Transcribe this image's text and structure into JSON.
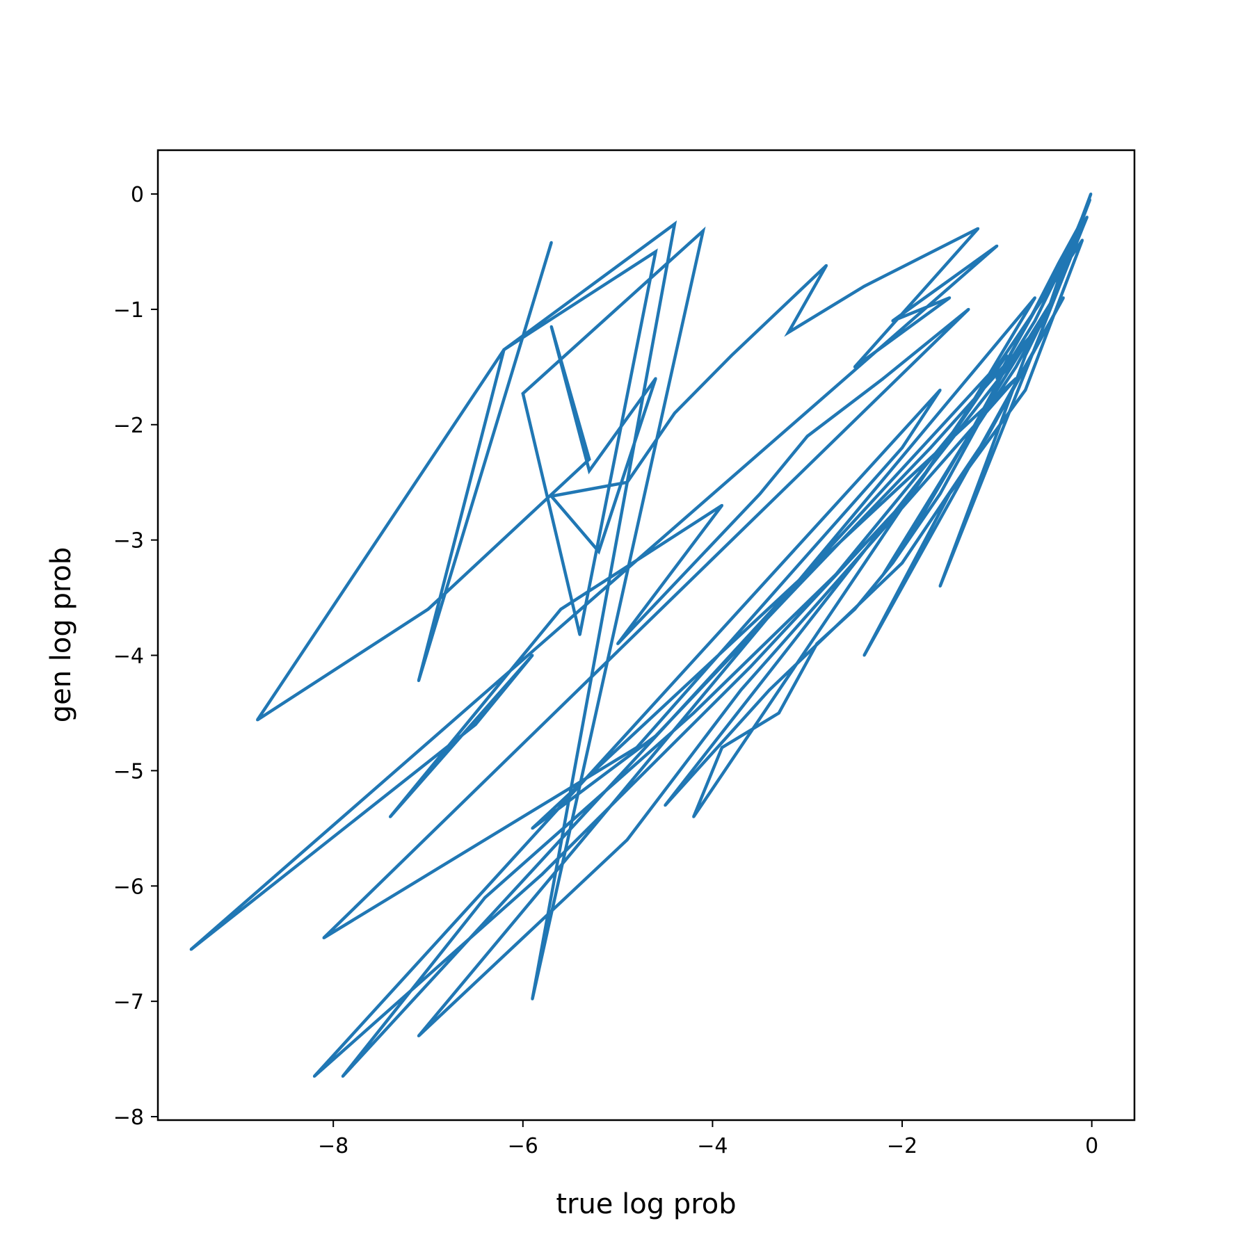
{
  "chart_data": {
    "type": "line",
    "title": "",
    "xlabel": "true log prob",
    "ylabel": "gen log prob",
    "xlim": [
      -9.85,
      0.45
    ],
    "ylim": [
      -8.03,
      0.38
    ],
    "x_ticks": [
      -8,
      -6,
      -4,
      -2,
      0
    ],
    "y_ticks": [
      0,
      -1,
      -2,
      -3,
      -4,
      -5,
      -6,
      -7,
      -8
    ],
    "x_tick_labels": [
      "−8",
      "−6",
      "−4",
      "−2",
      "0"
    ],
    "y_tick_labels": [
      "0",
      "−1",
      "−2",
      "−3",
      "−4",
      "−5",
      "−6",
      "−7",
      "−8"
    ],
    "grid": false,
    "legend": "none",
    "color": "#2077b4",
    "series": [
      {
        "name": "",
        "x": [
          -5.7,
          -7.1,
          -6.2,
          -4.4,
          -5.9,
          -4.1,
          -6.0,
          -5.4,
          -4.6,
          -6.2,
          -8.8,
          -7.0,
          -5.3,
          -5.7,
          -5.3,
          -4.6,
          -5.2,
          -5.7,
          -4.9,
          -4.4,
          -3.8,
          -2.8,
          -3.2,
          -2.4,
          -1.8,
          -1.2,
          -2.5,
          -1.5,
          -2.1,
          -1.0,
          -9.5,
          -6.5,
          -5.9,
          -7.4,
          -5.6,
          -3.9,
          -5.0,
          -3.5,
          -3.0,
          -2.2,
          -1.3,
          -8.1,
          -4.8,
          -3.4,
          -2.0,
          -1.6,
          -8.2,
          -5.8,
          -3.6,
          -1.9,
          -0.9,
          -7.9,
          -6.4,
          -4.2,
          -2.7,
          -1.4,
          -0.6,
          -7.1,
          -4.9,
          -3.7,
          -2.3,
          -0.8,
          -5.9,
          -4.6,
          -3.1,
          -1.7,
          -0.5,
          -4.5,
          -3.4,
          -2.0,
          -1.1,
          -0.3,
          -2.4,
          -1.5,
          -0.7,
          -0.1,
          -4.2,
          -3.9,
          -3.3,
          -2.9,
          -2.5,
          -2.1,
          -1.6,
          -1.2,
          -0.8,
          -0.4,
          -2.2,
          -1.8,
          -1.3,
          -0.9,
          -0.6,
          -0.3,
          -0.1,
          -1.6,
          -1.1,
          -0.7,
          -0.4,
          -0.2,
          -0.05,
          -1.0,
          -0.6,
          -0.35,
          -0.15,
          -0.02,
          -0.5,
          -0.25,
          -0.1,
          -0.01
        ],
        "y": [
          -0.42,
          -4.22,
          -1.35,
          -0.26,
          -6.98,
          -0.32,
          -1.73,
          -3.82,
          -0.5,
          -1.35,
          -4.56,
          -3.6,
          -2.3,
          -1.15,
          -2.4,
          -1.6,
          -3.1,
          -2.62,
          -2.5,
          -1.9,
          -1.4,
          -0.62,
          -1.2,
          -0.8,
          -0.55,
          -0.3,
          -1.5,
          -0.9,
          -1.1,
          -0.45,
          -6.55,
          -4.6,
          -4.0,
          -5.4,
          -3.6,
          -2.7,
          -3.9,
          -2.6,
          -2.1,
          -1.6,
          -1.0,
          -6.45,
          -4.8,
          -3.5,
          -2.2,
          -1.7,
          -7.65,
          -5.9,
          -4.1,
          -2.6,
          -1.4,
          -7.65,
          -6.1,
          -4.5,
          -3.3,
          -2.0,
          -0.9,
          -7.3,
          -5.6,
          -4.3,
          -3.0,
          -1.6,
          -5.5,
          -4.7,
          -3.4,
          -2.2,
          -1.1,
          -5.3,
          -4.3,
          -3.2,
          -2.1,
          -0.9,
          -4.0,
          -2.6,
          -1.7,
          -0.4,
          -5.4,
          -4.8,
          -4.5,
          -3.9,
          -3.6,
          -3.2,
          -2.6,
          -2.0,
          -1.5,
          -0.9,
          -3.3,
          -2.8,
          -2.1,
          -1.5,
          -1.1,
          -0.6,
          -0.3,
          -3.4,
          -2.3,
          -1.4,
          -0.9,
          -0.5,
          -0.2,
          -1.6,
          -1.0,
          -0.6,
          -0.3,
          -0.05,
          -1.1,
          -0.5,
          -0.2,
          0.0
        ]
      }
    ]
  }
}
